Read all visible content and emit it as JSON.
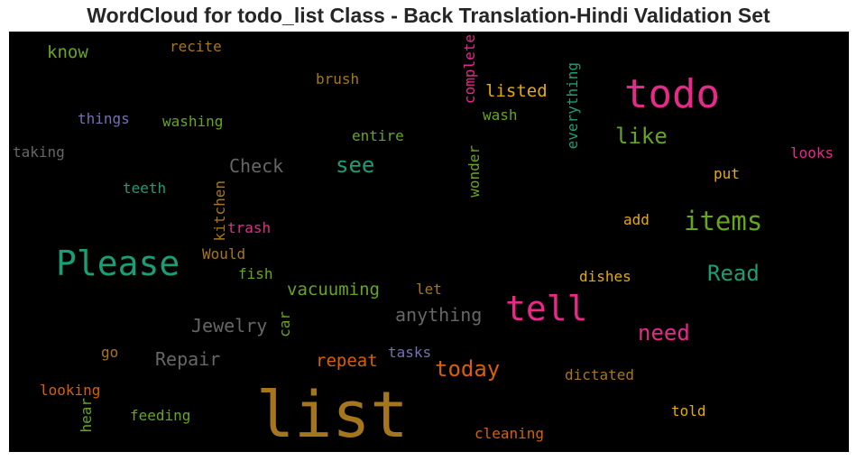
{
  "title": "WordCloud for todo_list Class - Back Translation-Hindi Validation Set",
  "colors": {
    "background": "#000000",
    "pink": "#e7298a",
    "green": "#66a61e",
    "teal": "#1b9e77",
    "orange": "#d95f02",
    "gold": "#e6ab02",
    "brown": "#a6761d",
    "gray": "#666666",
    "purple": "#7570b3"
  },
  "words": {
    "list": "list",
    "todo": "todo",
    "tell": "tell",
    "please": "Please",
    "items": "items",
    "today": "today",
    "need": "need",
    "like": "like",
    "read": "Read",
    "see": "see",
    "anything": "anything",
    "check": "Check",
    "jewelry": "Jewelry",
    "vacuuming": "vacuuming",
    "repeat": "repeat",
    "repair": "Repair",
    "listed": "listed",
    "know": "know",
    "recite": "recite",
    "brush": "brush",
    "complete": "complete",
    "wash": "wash",
    "everything": "everything",
    "things": "things",
    "washing": "washing",
    "entire": "entire",
    "taking": "taking",
    "looks": "looks",
    "teeth": "teeth",
    "kitchen": "kitchen",
    "wonder": "wonder",
    "put": "put",
    "trash": "trash",
    "add": "add",
    "would": "Would",
    "fish": "fish",
    "dishes": "dishes",
    "let": "let",
    "car": "car",
    "go": "go",
    "tasks": "tasks",
    "dictated": "dictated",
    "looking": "looking",
    "feeding": "feeding",
    "hear": "hear",
    "told": "told",
    "cleaning": "cleaning"
  }
}
